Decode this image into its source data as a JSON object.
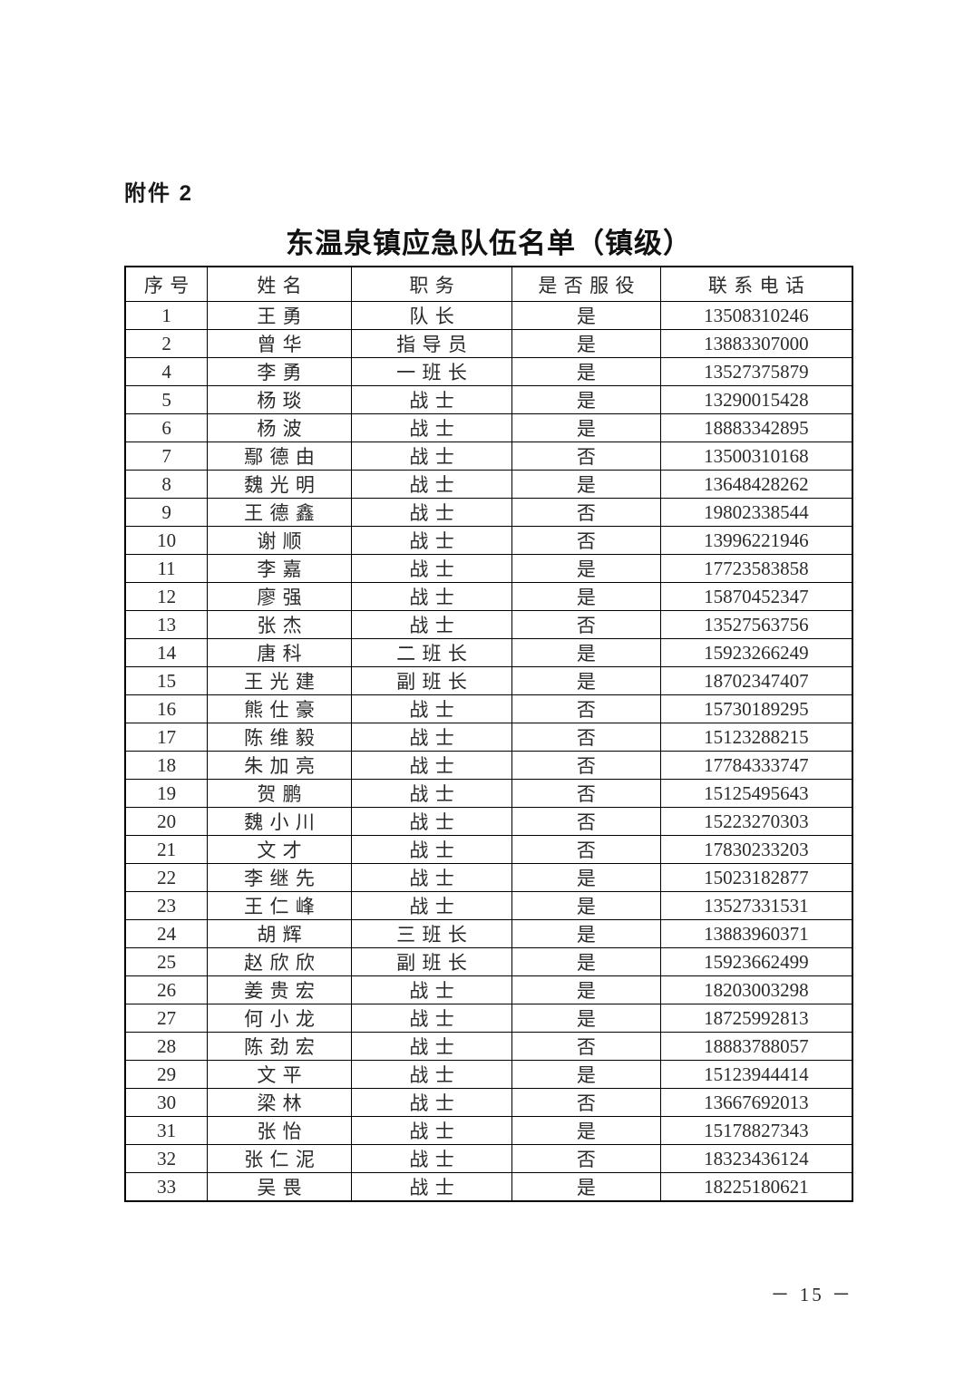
{
  "page": {
    "attachment_label": "附件 2",
    "title": "东温泉镇应急队伍名单（镇级）",
    "page_number": "－ 15 －"
  },
  "table": {
    "headers": [
      "序号",
      "姓名",
      "职务",
      "是否服役",
      "联系电话"
    ],
    "rows": [
      {
        "no": "1",
        "name": "王勇",
        "position": "队长",
        "serving": "是",
        "phone": "13508310246"
      },
      {
        "no": "2",
        "name": "曾华",
        "position": "指导员",
        "serving": "是",
        "phone": "13883307000"
      },
      {
        "no": "4",
        "name": "李勇",
        "position": "一班长",
        "serving": "是",
        "phone": "13527375879"
      },
      {
        "no": "5",
        "name": "杨琰",
        "position": "战士",
        "serving": "是",
        "phone": "13290015428"
      },
      {
        "no": "6",
        "name": "杨波",
        "position": "战士",
        "serving": "是",
        "phone": "18883342895"
      },
      {
        "no": "7",
        "name": "鄢德由",
        "position": "战士",
        "serving": "否",
        "phone": "13500310168"
      },
      {
        "no": "8",
        "name": "魏光明",
        "position": "战士",
        "serving": "是",
        "phone": "13648428262"
      },
      {
        "no": "9",
        "name": "王德鑫",
        "position": "战士",
        "serving": "否",
        "phone": "19802338544"
      },
      {
        "no": "10",
        "name": "谢顺",
        "position": "战士",
        "serving": "否",
        "phone": "13996221946"
      },
      {
        "no": "11",
        "name": "李嘉",
        "position": "战士",
        "serving": "是",
        "phone": "17723583858"
      },
      {
        "no": "12",
        "name": "廖强",
        "position": "战士",
        "serving": "是",
        "phone": "15870452347"
      },
      {
        "no": "13",
        "name": "张杰",
        "position": "战士",
        "serving": "否",
        "phone": "13527563756"
      },
      {
        "no": "14",
        "name": "唐科",
        "position": "二班长",
        "serving": "是",
        "phone": "15923266249"
      },
      {
        "no": "15",
        "name": "王光建",
        "position": "副班长",
        "serving": "是",
        "phone": "18702347407"
      },
      {
        "no": "16",
        "name": "熊仕豪",
        "position": "战士",
        "serving": "否",
        "phone": "15730189295"
      },
      {
        "no": "17",
        "name": "陈维毅",
        "position": "战士",
        "serving": "否",
        "phone": "15123288215"
      },
      {
        "no": "18",
        "name": "朱加亮",
        "position": "战士",
        "serving": "否",
        "phone": "17784333747"
      },
      {
        "no": "19",
        "name": "贺鹏",
        "position": "战士",
        "serving": "否",
        "phone": "15125495643"
      },
      {
        "no": "20",
        "name": "魏小川",
        "position": "战士",
        "serving": "否",
        "phone": "15223270303"
      },
      {
        "no": "21",
        "name": "文才",
        "position": "战士",
        "serving": "否",
        "phone": "17830233203"
      },
      {
        "no": "22",
        "name": "李继先",
        "position": "战士",
        "serving": "是",
        "phone": "15023182877"
      },
      {
        "no": "23",
        "name": "王仁峰",
        "position": "战士",
        "serving": "是",
        "phone": "13527331531"
      },
      {
        "no": "24",
        "name": "胡辉",
        "position": "三班长",
        "serving": "是",
        "phone": "13883960371"
      },
      {
        "no": "25",
        "name": "赵欣欣",
        "position": "副班长",
        "serving": "是",
        "phone": "15923662499"
      },
      {
        "no": "26",
        "name": "姜贵宏",
        "position": "战士",
        "serving": "是",
        "phone": "18203003298"
      },
      {
        "no": "27",
        "name": "何小龙",
        "position": "战士",
        "serving": "是",
        "phone": "18725992813"
      },
      {
        "no": "28",
        "name": "陈劲宏",
        "position": "战士",
        "serving": "否",
        "phone": "18883788057"
      },
      {
        "no": "29",
        "name": "文平",
        "position": "战士",
        "serving": "是",
        "phone": "15123944414"
      },
      {
        "no": "30",
        "name": "梁林",
        "position": "战士",
        "serving": "否",
        "phone": "13667692013"
      },
      {
        "no": "31",
        "name": "张怡",
        "position": "战士",
        "serving": "是",
        "phone": "15178827343"
      },
      {
        "no": "32",
        "name": "张仁泥",
        "position": "战士",
        "serving": "否",
        "phone": "18323436124"
      },
      {
        "no": "33",
        "name": "吴畏",
        "position": "战士",
        "serving": "是",
        "phone": "18225180621"
      }
    ]
  }
}
